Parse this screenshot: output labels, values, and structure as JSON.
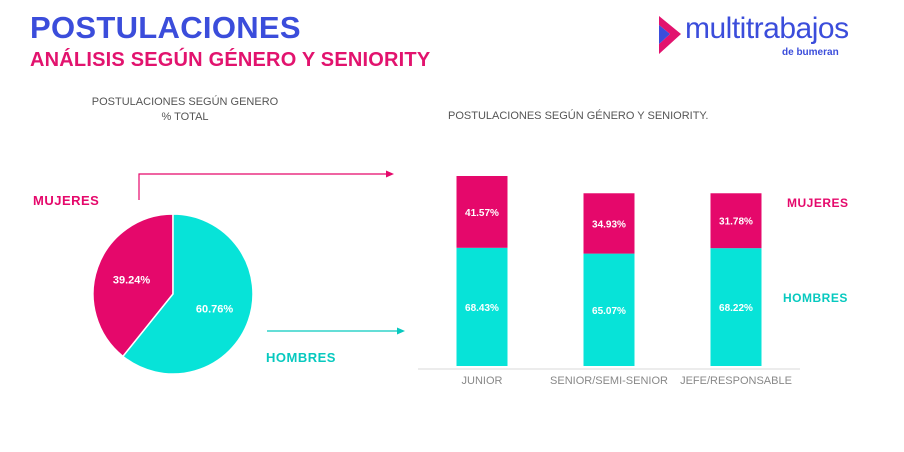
{
  "header": {
    "title": "POSTULACIONES",
    "subtitle": "ANÁLISIS SEGÚN GÉNERO Y SENIORITY"
  },
  "logo": {
    "word": "multitrabajos",
    "tag": "de bumeran",
    "icon": "chevron-right-icon"
  },
  "colors": {
    "mujeres": "#e5086b",
    "hombres": "#07e3d8",
    "brand_blue": "#3b4ddb",
    "brand_pink": "#e2136e"
  },
  "chart_data": [
    {
      "type": "pie",
      "title_line1": "POSTULACIONES SEGÚN GENERO",
      "title_line2": "% TOTAL",
      "slices": [
        {
          "name": "MUJERES",
          "value": 39.24,
          "label": "39.24%"
        },
        {
          "name": "HOMBRES",
          "value": 60.76,
          "label": "60.76%"
        }
      ]
    },
    {
      "type": "bar",
      "stacked": true,
      "title": "POSTULACIONES SEGÚN GÉNERO Y SENIORITY.",
      "categories": [
        "JUNIOR",
        "SENIOR/SEMI-SENIOR",
        "JEFE/RESPONSABLE"
      ],
      "series": [
        {
          "name": "HOMBRES",
          "values": [
            68.43,
            65.07,
            68.22
          ],
          "labels": [
            "68.43%",
            "65.07%",
            "68.22%"
          ]
        },
        {
          "name": "MUJERES",
          "values": [
            41.57,
            34.93,
            31.78
          ],
          "labels": [
            "41.57%",
            "34.93%",
            "31.78%"
          ]
        }
      ]
    }
  ]
}
